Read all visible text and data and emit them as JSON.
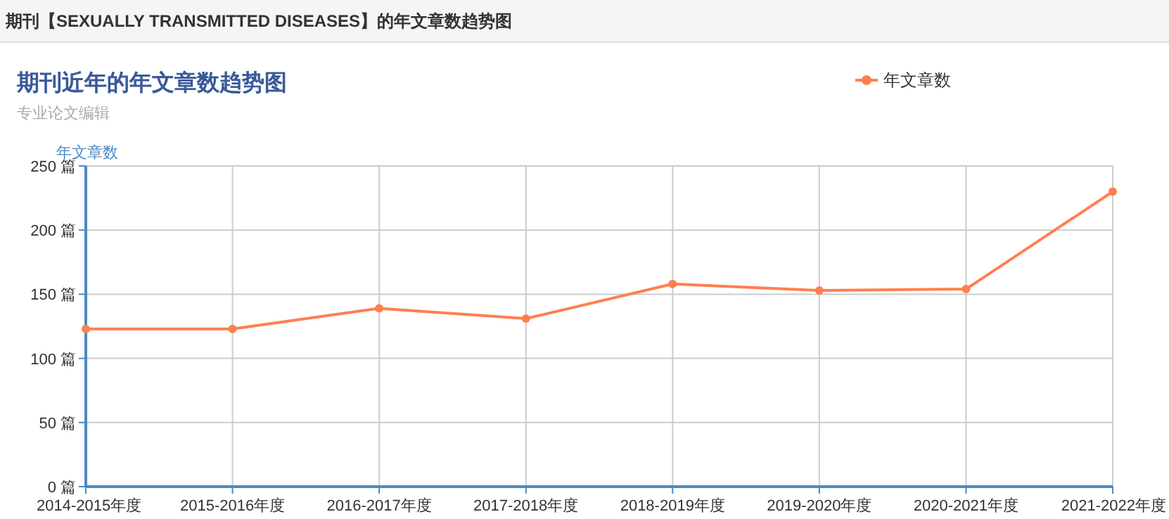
{
  "chart_data": {
    "type": "line",
    "title": "期刊近年的年文章数趋势图",
    "subtitle": "专业论文编辑",
    "ylabel": "年文章数",
    "annotations": [
      "期刊【SEXUALLY TRANSMITTED DISEASES】的年文章数趋势图"
    ],
    "categories": [
      "2014-2015年度",
      "2015-2016年度",
      "2016-2017年度",
      "2017-2018年度",
      "2018-2019年度",
      "2019-2020年度",
      "2020-2021年度",
      "2021-2022年度"
    ],
    "series": [
      {
        "name": "年文章数",
        "color": "#ff7f50",
        "values": [
          123,
          123,
          139,
          131,
          158,
          153,
          154,
          230
        ]
      }
    ],
    "ylim": [
      0,
      250
    ],
    "yticks": [
      {
        "value": 0,
        "label": "0 篇"
      },
      {
        "value": 50,
        "label": "50 篇"
      },
      {
        "value": 100,
        "label": "100 篇"
      },
      {
        "value": 150,
        "label": "150 篇"
      },
      {
        "value": 200,
        "label": "200 篇"
      },
      {
        "value": 250,
        "label": "250 篇"
      }
    ],
    "grid": true,
    "legend": "top right",
    "marker": "circle",
    "line_style": "solid"
  }
}
